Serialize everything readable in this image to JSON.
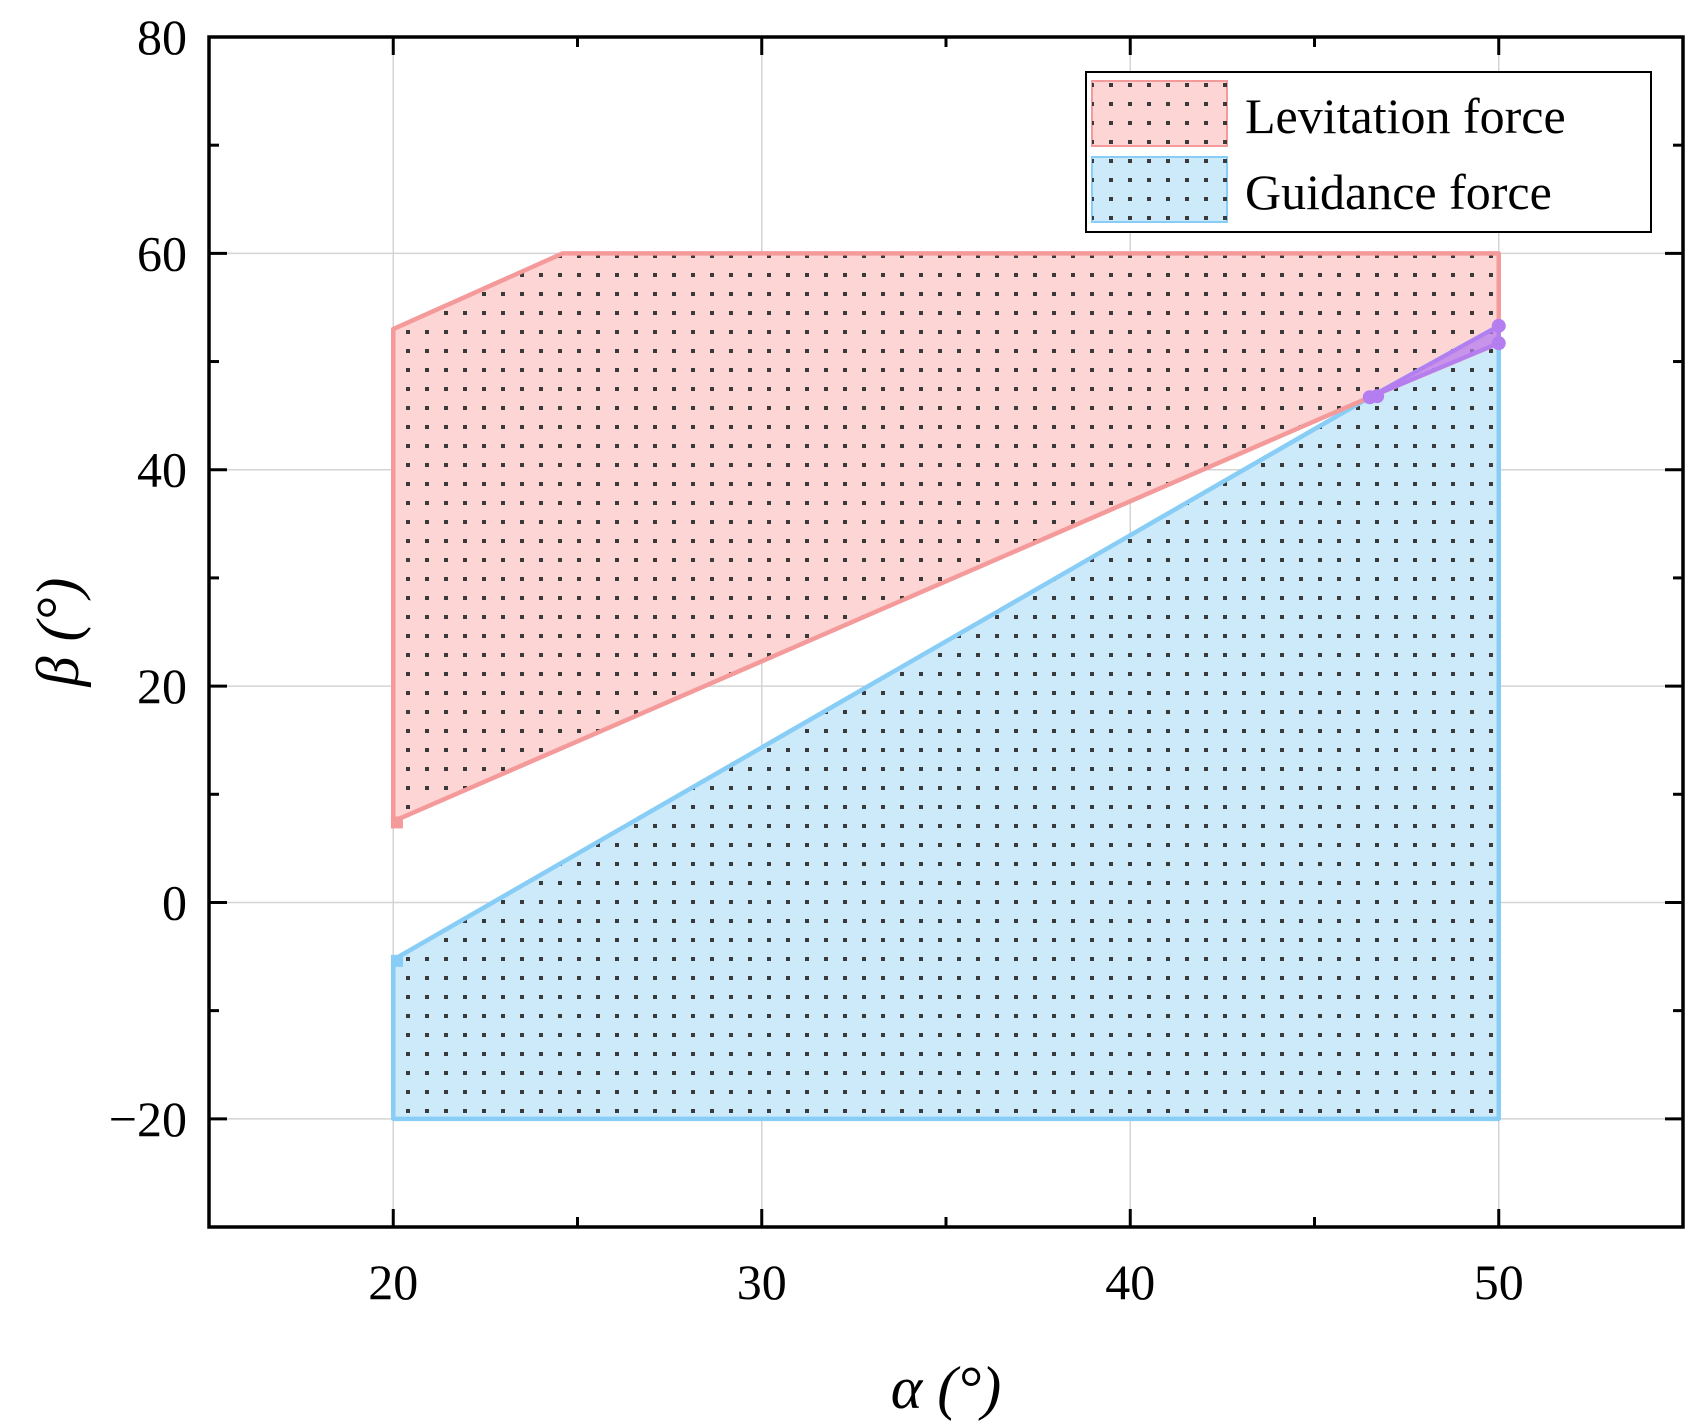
{
  "chart_data": {
    "type": "area",
    "title": "",
    "xlabel": "α (°)",
    "ylabel": "β (°)",
    "xlim": [
      15,
      55
    ],
    "ylim": [
      -30,
      80
    ],
    "grid": true,
    "x_ticks": [
      20,
      30,
      40,
      50
    ],
    "y_ticks": [
      -20,
      0,
      20,
      40,
      60,
      80
    ],
    "legend_position": "top-right",
    "series": [
      {
        "name": "Levitation force",
        "fill": "#fdd5d5",
        "edge": "#f59a9a",
        "hatch": "dots",
        "polygon": [
          [
            20,
            7.5
          ],
          [
            20,
            53
          ],
          [
            24.6,
            60
          ],
          [
            50,
            60
          ],
          [
            50,
            51.7
          ],
          [
            46.5,
            46.7
          ],
          [
            20,
            7.5
          ]
        ]
      },
      {
        "name": "Guidance force",
        "fill": "#cdeafa",
        "edge": "#87cdf5",
        "hatch": "dots",
        "polygon": [
          [
            20,
            -20
          ],
          [
            20,
            -5.3
          ],
          [
            46.5,
            46.7
          ],
          [
            50,
            53.3
          ],
          [
            50,
            -20
          ],
          [
            20,
            -20
          ]
        ]
      }
    ],
    "overlap": {
      "color": "#b57ef0",
      "polygon": [
        [
          46.5,
          46.7
        ],
        [
          50,
          53.3
        ],
        [
          50,
          51.7
        ]
      ],
      "points": [
        [
          46.5,
          46.7
        ],
        [
          46.7,
          46.8
        ],
        [
          50,
          53.3
        ],
        [
          50,
          51.7
        ]
      ]
    },
    "markers": [
      {
        "series": "Levitation force",
        "point": [
          20.1,
          7.4
        ],
        "color": "#f59a9a"
      },
      {
        "series": "Guidance force",
        "point": [
          20.1,
          -5.4
        ],
        "color": "#87cdf5"
      }
    ]
  }
}
